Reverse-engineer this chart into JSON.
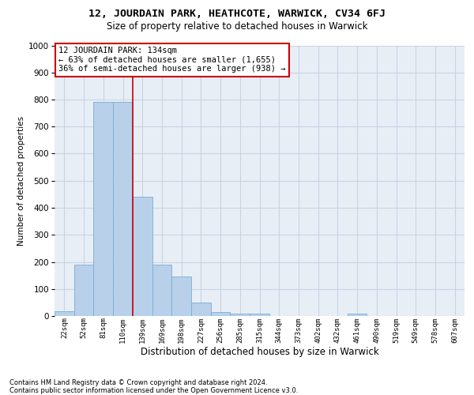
{
  "title1": "12, JOURDAIN PARK, HEATHCOTE, WARWICK, CV34 6FJ",
  "title2": "Size of property relative to detached houses in Warwick",
  "xlabel": "Distribution of detached houses by size in Warwick",
  "ylabel": "Number of detached properties",
  "footnote": "Contains HM Land Registry data © Crown copyright and database right 2024.\nContains public sector information licensed under the Open Government Licence v3.0.",
  "categories": [
    "22sqm",
    "52sqm",
    "81sqm",
    "110sqm",
    "139sqm",
    "169sqm",
    "198sqm",
    "227sqm",
    "256sqm",
    "285sqm",
    "315sqm",
    "344sqm",
    "373sqm",
    "402sqm",
    "432sqm",
    "461sqm",
    "490sqm",
    "519sqm",
    "549sqm",
    "578sqm",
    "607sqm"
  ],
  "values": [
    18,
    190,
    790,
    790,
    440,
    190,
    145,
    50,
    15,
    10,
    10,
    0,
    0,
    0,
    0,
    8,
    0,
    0,
    0,
    0,
    0
  ],
  "bar_color": "#b8d0ea",
  "bar_edge_color": "#7aadd4",
  "grid_color": "#c8d4e4",
  "vline_color": "#cc0000",
  "annotation_title": "12 JOURDAIN PARK: 134sqm",
  "annotation_line2": "← 63% of detached houses are smaller (1,655)",
  "annotation_line3": "36% of semi-detached houses are larger (938) →",
  "annotation_box_edge": "#cc0000",
  "ylim": [
    0,
    1000
  ],
  "yticks": [
    0,
    100,
    200,
    300,
    400,
    500,
    600,
    700,
    800,
    900,
    1000
  ],
  "bg_color": "#e8eef6",
  "vline_x_index": 3.5
}
